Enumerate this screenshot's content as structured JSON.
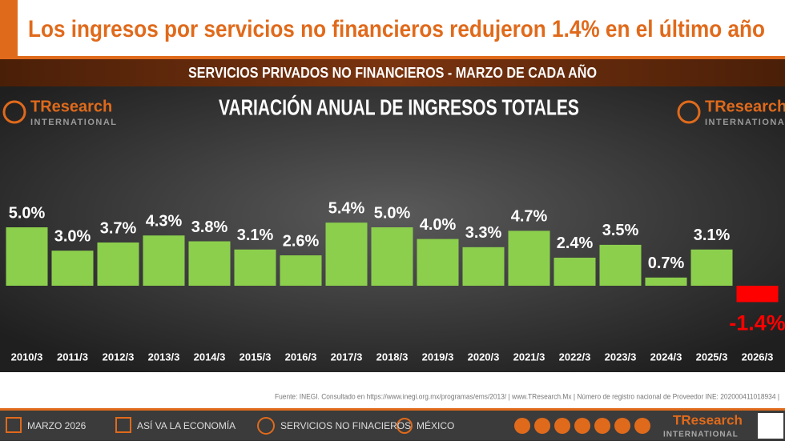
{
  "header": {
    "title": "Los ingresos por servicios no financieros redujeron 1.4% en el último año"
  },
  "chart_data": {
    "type": "bar",
    "subtitle": "SERVICIOS PRIVADOS NO FINANCIEROS - MARZO DE CADA AÑO",
    "title": "VARIACIÓN ANUAL DE INGRESOS TOTALES",
    "categories": [
      "2010/3",
      "2011/3",
      "2012/3",
      "2013/3",
      "2014/3",
      "2015/3",
      "2016/3",
      "2017/3",
      "2018/3",
      "2019/3",
      "2020/3",
      "2021/3",
      "2022/3",
      "2023/3",
      "2024/3",
      "2025/3",
      "2026/3"
    ],
    "values": [
      5.0,
      3.0,
      3.7,
      4.3,
      3.8,
      3.1,
      2.6,
      5.4,
      5.0,
      4.0,
      3.3,
      4.7,
      2.4,
      3.5,
      0.7,
      3.1,
      -1.4
    ],
    "value_labels": [
      "5.0%",
      "3.0%",
      "3.7%",
      "4.3%",
      "3.8%",
      "3.1%",
      "2.6%",
      "5.4%",
      "5.0%",
      "4.0%",
      "3.3%",
      "4.7%",
      "2.4%",
      "3.5%",
      "0.7%",
      "3.1%",
      "-1.4%"
    ],
    "color": "#8ccf4d",
    "negative_color": "#ff0000"
  },
  "logo": {
    "name": "TResearch",
    "tagline": "INTERNATIONAL"
  },
  "source": "Fuente: INEGI. Consultado en https://www.inegi.org.mx/programas/ems/2013/  |  www.TResearch.Mx | Número de registro nacional de Proveedor INE: 202000411018934  |",
  "footer": {
    "items": [
      "MARZO 2026",
      "ASÍ VA LA ECONOMÍA",
      "SERVICIOS NO FINACIEROS",
      "MÉXICO"
    ]
  }
}
